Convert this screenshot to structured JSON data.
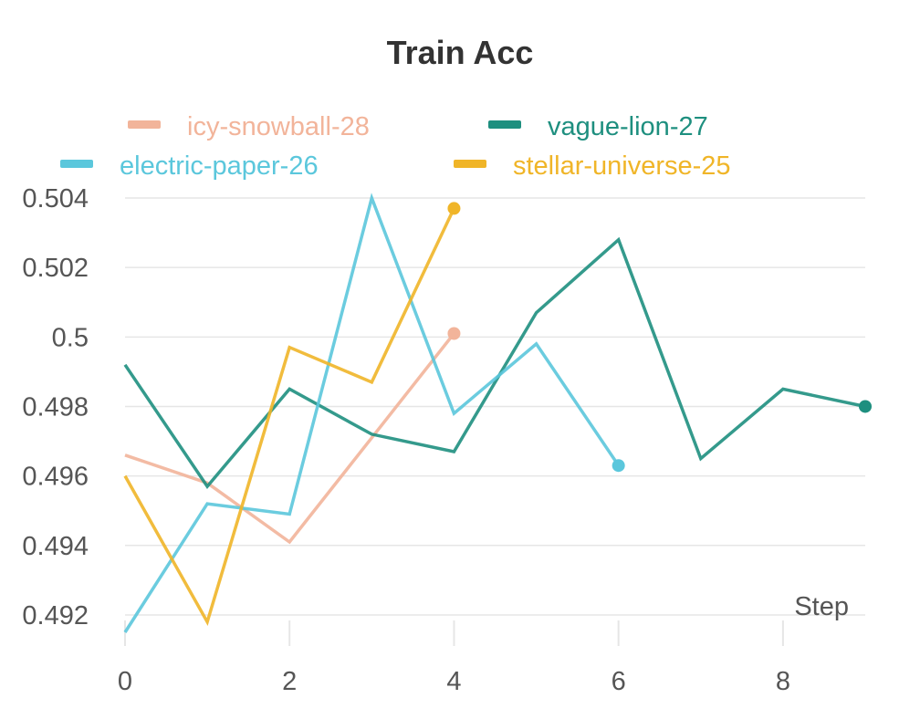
{
  "chart_data": {
    "type": "line",
    "title": "Train Acc",
    "xlabel": "Step",
    "ylabel": "",
    "xlim": [
      0,
      9
    ],
    "ylim": [
      0.4915,
      0.504
    ],
    "x_ticks": [
      0,
      2,
      4,
      6,
      8
    ],
    "y_ticks": [
      0.492,
      0.494,
      0.496,
      0.498,
      0.5,
      0.502,
      0.504
    ],
    "y_tick_labels": [
      "0.492",
      "0.494",
      "0.496",
      "0.498",
      "0.5",
      "0.502",
      "0.504"
    ],
    "grid": "horizontal",
    "legend_position": "top",
    "series": [
      {
        "name": "icy-snowball-28",
        "color": "#f2b49a",
        "x": [
          0,
          1,
          2,
          3,
          4
        ],
        "values": [
          0.4966,
          0.4958,
          0.4941,
          0.4971,
          0.5001
        ]
      },
      {
        "name": "vague-lion-27",
        "color": "#1e8f7f",
        "x": [
          0,
          1,
          2,
          3,
          4,
          5,
          6,
          7,
          8,
          9
        ],
        "values": [
          0.4992,
          0.4957,
          0.4985,
          0.4972,
          0.4967,
          0.5007,
          0.5028,
          0.4965,
          0.4985,
          0.498
        ]
      },
      {
        "name": "electric-paper-26",
        "color": "#5bc7dc",
        "x": [
          0,
          1,
          2,
          3,
          4,
          5,
          6
        ],
        "values": [
          0.4915,
          0.4952,
          0.4949,
          0.504,
          0.4978,
          0.4998,
          0.4963
        ]
      },
      {
        "name": "stellar-universe-25",
        "color": "#f0b528",
        "x": [
          0,
          1,
          2,
          3,
          4
        ],
        "values": [
          0.496,
          0.4918,
          0.4997,
          0.4987,
          0.5037
        ]
      }
    ]
  }
}
